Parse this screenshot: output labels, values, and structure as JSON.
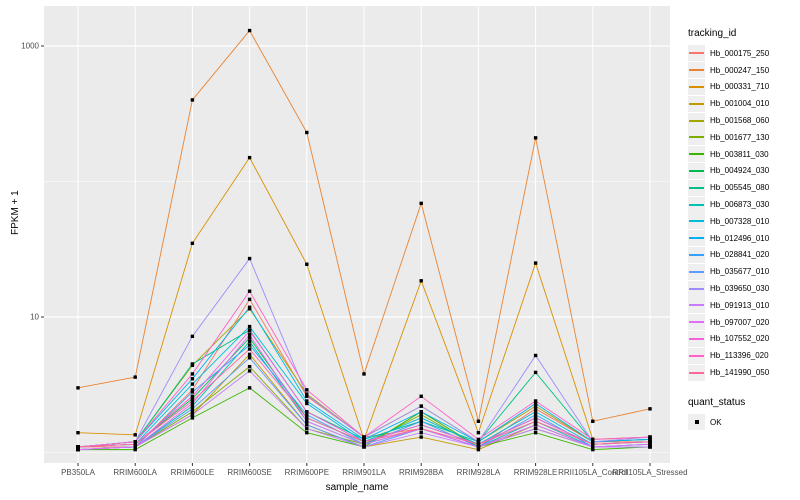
{
  "figure": {
    "panel_bg": "#EBEBEB",
    "grid_color": "#FFFFFF",
    "axis_text_color": "#4D4D4D",
    "point_color": "#000000"
  },
  "axes": {
    "x_title": "sample_name",
    "y_title": "FPKM + 1",
    "y_tick_labels": [
      "1000",
      "10"
    ]
  },
  "legend": {
    "tracking_title": "tracking_id",
    "quant_title": "quant_status",
    "quant_items": [
      {
        "label": "OK",
        "marker": "black-square"
      }
    ]
  },
  "chart_data": {
    "type": "line",
    "title": "",
    "xlabel": "sample_name",
    "ylabel": "FPKM + 1",
    "y_scale": "log10",
    "ylim": [
      1,
      1585
    ],
    "y_major_breaks": [
      10,
      1000
    ],
    "y_minor_breaks": [
      1,
      100
    ],
    "grid": "on",
    "legend_position": "right",
    "point_marker": "black-square",
    "categories": [
      "PB350LA",
      "RRIM600LA",
      "RRIM600LE",
      "RRIM600SE",
      "RRIM600PE",
      "RRIM901LA",
      "RRIM928BA",
      "RRIM928LA",
      "RRIM928LE",
      "RRII105LA_Control",
      "RRII105LA_Stressed"
    ],
    "series": [
      {
        "name": "Hb_000175_250",
        "color": "#F8766D",
        "values": [
          1.1,
          1.1,
          2.9,
          13.5,
          2.6,
          1.3,
          1.5,
          1.1,
          2.1,
          1.2,
          1.2
        ]
      },
      {
        "name": "Hb_000247_150",
        "color": "#EA8331",
        "values": [
          3.0,
          3.6,
          400,
          1300,
          230,
          3.8,
          69,
          1.7,
          210,
          1.7,
          2.1
        ]
      },
      {
        "name": "Hb_000331_710",
        "color": "#D89000",
        "values": [
          1.4,
          1.35,
          35,
          150,
          24.5,
          1.25,
          18.5,
          1.4,
          25,
          1.25,
          1.3
        ]
      },
      {
        "name": "Hb_001004_010",
        "color": "#C09B00",
        "values": [
          1.05,
          1.1,
          1.9,
          5.3,
          1.6,
          1.1,
          1.3,
          1.05,
          1.6,
          1.1,
          1.1
        ]
      },
      {
        "name": "Hb_001568_060",
        "color": "#A3A500",
        "values": [
          1.1,
          1.2,
          4.4,
          11.5,
          2.7,
          1.3,
          2.2,
          1.2,
          2.2,
          1.2,
          1.25
        ]
      },
      {
        "name": "Hb_001677_130",
        "color": "#7CAE00",
        "values": [
          1.05,
          1.1,
          2.0,
          4.3,
          1.5,
          1.15,
          1.9,
          1.1,
          1.5,
          1.1,
          1.1
        ]
      },
      {
        "name": "Hb_003811_030",
        "color": "#39B600",
        "values": [
          1.05,
          1.05,
          1.8,
          3.0,
          1.4,
          1.1,
          2.0,
          1.1,
          1.4,
          1.05,
          1.1
        ]
      },
      {
        "name": "Hb_004924_030",
        "color": "#00BB4E",
        "values": [
          1.1,
          1.15,
          2.5,
          7.0,
          1.8,
          1.2,
          1.6,
          1.15,
          1.8,
          1.15,
          1.2
        ]
      },
      {
        "name": "Hb_005545_080",
        "color": "#00C087",
        "values": [
          1.1,
          1.2,
          4.5,
          8.0,
          2.0,
          1.25,
          1.7,
          1.2,
          3.9,
          1.2,
          1.25
        ]
      },
      {
        "name": "Hb_006873_030",
        "color": "#00C0B2",
        "values": [
          1.05,
          1.1,
          2.2,
          6.6,
          1.7,
          1.15,
          1.5,
          1.1,
          1.7,
          1.1,
          1.15
        ]
      },
      {
        "name": "Hb_007328_010",
        "color": "#00BCD8",
        "values": [
          1.1,
          1.15,
          3.2,
          8.5,
          2.3,
          1.2,
          1.8,
          1.15,
          2.0,
          1.15,
          1.2
        ]
      },
      {
        "name": "Hb_012496_010",
        "color": "#00B3F0",
        "values": [
          1.1,
          1.2,
          3.5,
          11.8,
          2.4,
          1.25,
          2.0,
          1.2,
          2.3,
          1.2,
          1.25
        ]
      },
      {
        "name": "Hb_028841_020",
        "color": "#35A2FF",
        "values": [
          1.05,
          1.1,
          2.8,
          6.2,
          1.9,
          1.15,
          1.7,
          1.1,
          1.9,
          1.1,
          1.15
        ]
      },
      {
        "name": "Hb_035677_010",
        "color": "#619CFF",
        "values": [
          1.05,
          1.1,
          2.1,
          5.0,
          1.6,
          1.1,
          1.5,
          1.1,
          1.6,
          1.1,
          1.1
        ]
      },
      {
        "name": "Hb_039650_030",
        "color": "#9E8CFF",
        "values": [
          1.1,
          1.2,
          7.2,
          27,
          2.65,
          1.3,
          2.2,
          1.2,
          5.2,
          1.2,
          1.3
        ]
      },
      {
        "name": "Hb_091913_010",
        "color": "#C77CFF",
        "values": [
          1.05,
          1.1,
          1.9,
          4.0,
          1.5,
          1.1,
          1.4,
          1.1,
          1.5,
          1.1,
          1.1
        ]
      },
      {
        "name": "Hb_097007_020",
        "color": "#E26EF7",
        "values": [
          1.05,
          1.1,
          2.3,
          7.4,
          1.7,
          1.15,
          1.5,
          1.1,
          1.6,
          1.1,
          1.15
        ]
      },
      {
        "name": "Hb_107552_020",
        "color": "#F561DD",
        "values": [
          1.1,
          1.15,
          2.6,
          7.9,
          2.0,
          1.2,
          1.6,
          1.15,
          1.8,
          1.15,
          1.2
        ]
      },
      {
        "name": "Hb_113396_020",
        "color": "#FF61C7",
        "values": [
          1.1,
          1.2,
          3.8,
          15.5,
          2.9,
          1.3,
          2.6,
          1.25,
          2.4,
          1.25,
          1.3
        ]
      },
      {
        "name": "Hb_141990_050",
        "color": "#FF689F",
        "values": [
          1.1,
          1.15,
          2.4,
          5.8,
          1.8,
          1.2,
          1.5,
          1.15,
          1.7,
          1.15,
          1.2
        ]
      }
    ]
  }
}
